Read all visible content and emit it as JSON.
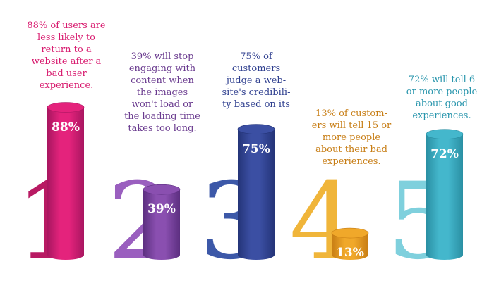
{
  "chart_data": {
    "type": "bar",
    "categories": [
      "1",
      "2",
      "3",
      "4",
      "5"
    ],
    "values": [
      88,
      39,
      75,
      13,
      72
    ],
    "value_labels": [
      "88%",
      "39%",
      "75%",
      "13%",
      "72%"
    ],
    "unit": "%",
    "captions": [
      [
        "88% of users are",
        "less likely to",
        "return to a",
        "website after a",
        "bad user",
        "experience."
      ],
      [
        "39% will stop",
        "engaging with",
        "content when",
        "the images",
        "won't load or",
        "the loading time",
        "takes too long."
      ],
      [
        "75% of",
        "customers",
        "judge a web-",
        "site's credibili-",
        "ty based on its"
      ],
      [
        "13% of custom-",
        "ers will tell 15 or",
        "more people",
        "about their bad",
        "experiences."
      ],
      [
        "72% will tell 6",
        "or more people",
        "about good",
        "experiences."
      ]
    ],
    "colors": [
      "#e4237c",
      "#8a4fb0",
      "#3b4fa3",
      "#f0a82a",
      "#44b7cc"
    ],
    "dark_colors": [
      "#a81660",
      "#5c2f80",
      "#243478",
      "#c77d14",
      "#2a8fa3"
    ],
    "caption_colors": [
      "#d81b6f",
      "#6a3b8f",
      "#2f3f8f",
      "#c77d14",
      "#2a96ad"
    ],
    "numeral_colors": [
      "#b81a63",
      "#9a5fbf",
      "#3c58a8",
      "#f0b53a",
      "#7fd0dd"
    ]
  }
}
